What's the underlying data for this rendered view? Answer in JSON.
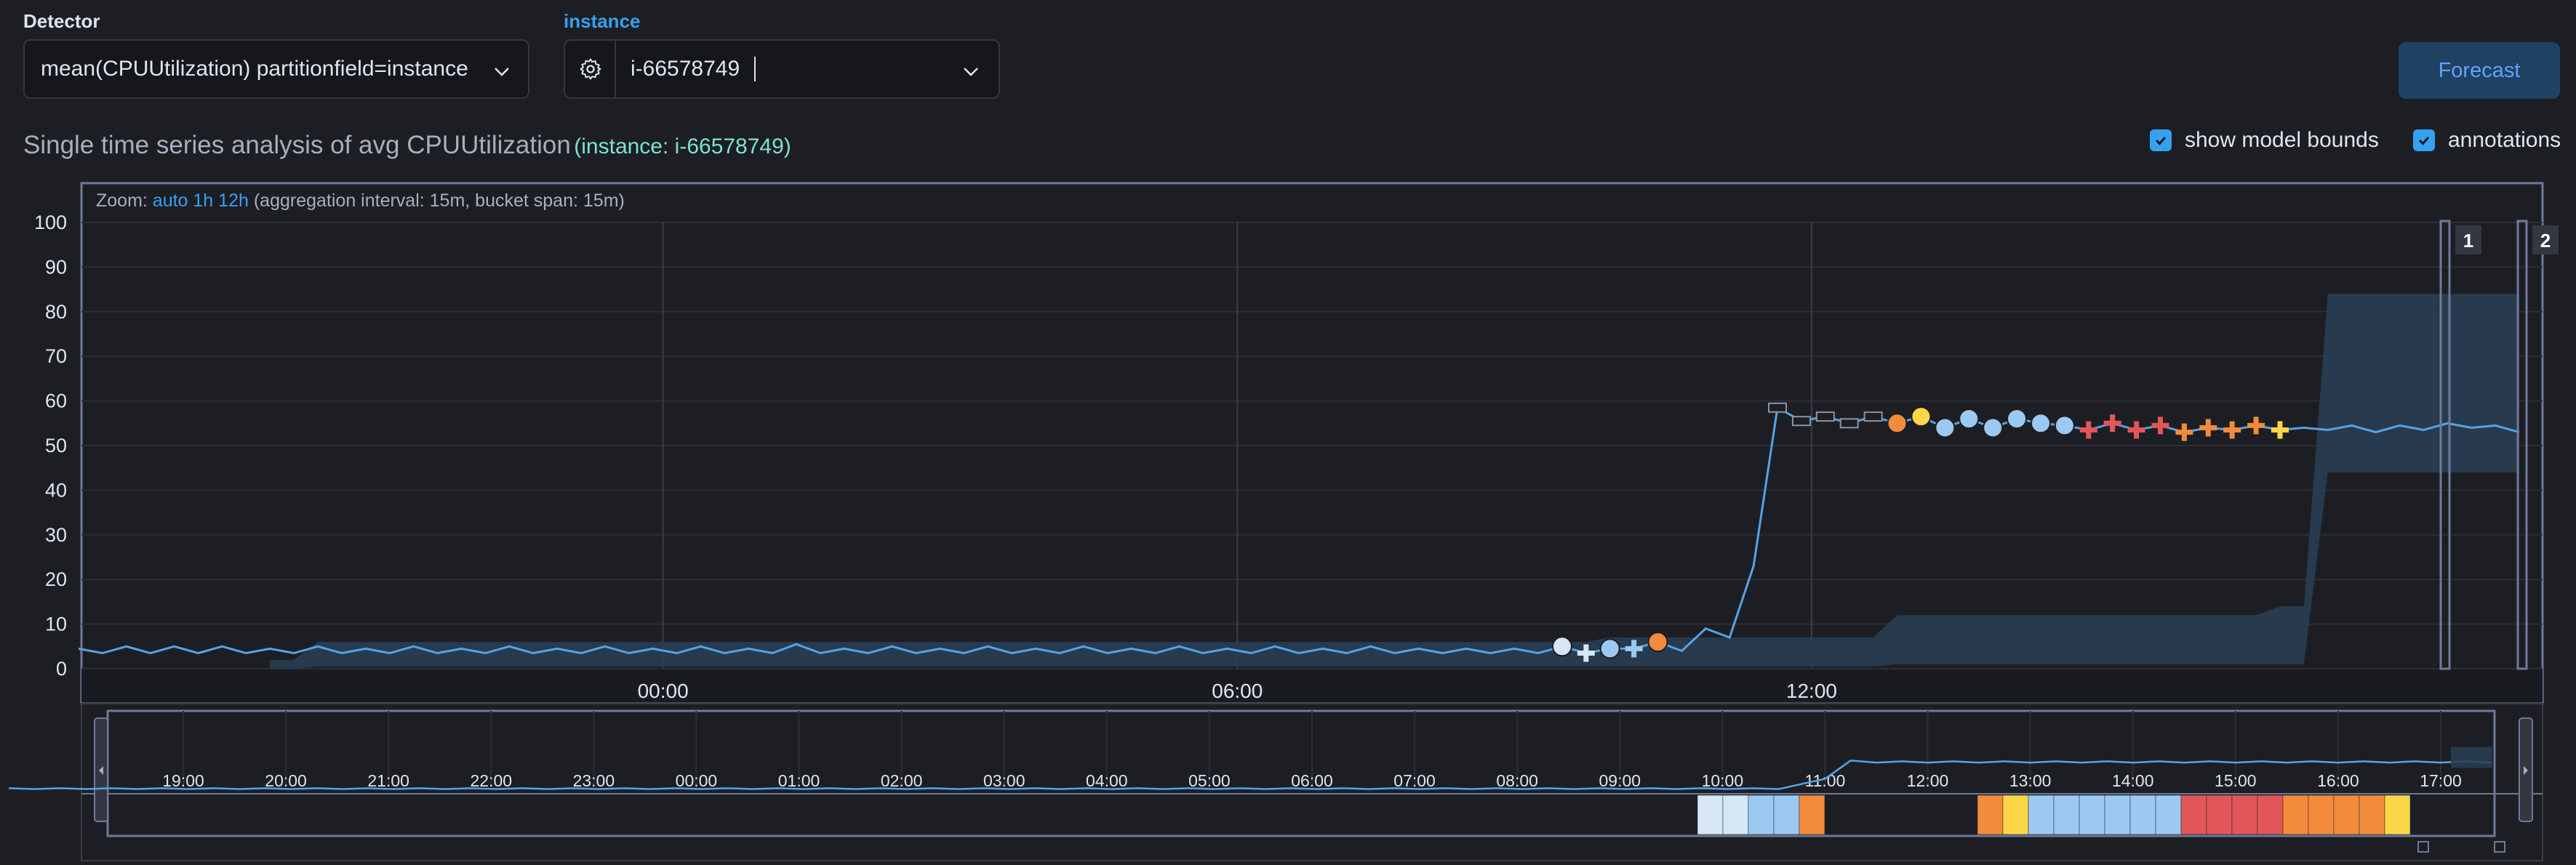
{
  "detector": {
    "label": "Detector",
    "value": "mean(CPUUtilization) partitionfield=instance"
  },
  "instance": {
    "label": "instance",
    "value": "i-66578749"
  },
  "forecast_button": "Forecast",
  "title": {
    "main": "Single time series analysis of avg CPUUtilization",
    "entity": "(instance: i-66578749)"
  },
  "toggles": {
    "model_bounds": {
      "label": "show model bounds",
      "checked": true
    },
    "annotations": {
      "label": "annotations",
      "checked": true
    }
  },
  "zoom": {
    "label": "Zoom:",
    "auto": "auto",
    "range": "1h",
    "range2": "12h",
    "interval": "(aggregation interval: 15m, bucket span: 15m)"
  },
  "annotation_labels": [
    "1",
    "2"
  ],
  "colors": {
    "line": "#54a3e6",
    "bounds": "#2a3f55",
    "critical": "#e15759",
    "major": "#f28b3b",
    "minor": "#fbd648",
    "warning": "#9bc9f2",
    "low": "#d6e6f5"
  },
  "chart_data": {
    "type": "line",
    "ylim": [
      0,
      100
    ],
    "y_ticks": [
      "0",
      "10",
      "20",
      "30",
      "40",
      "50",
      "60",
      "70",
      "80",
      "90",
      "100"
    ],
    "x_ticks": [
      "00:00",
      "06:00",
      "12:00"
    ],
    "series": [
      {
        "x_steps_from_start": "15m",
        "values": [
          4.5,
          3.5,
          5,
          3.5,
          5,
          3.5,
          5,
          3.5,
          4.5,
          3.5,
          5,
          3.5,
          4.5,
          3.5,
          5,
          3.5,
          4.5,
          3.5,
          5,
          3.5,
          4.5,
          3.5,
          5,
          3.5,
          4.5,
          3.5,
          5,
          3.5,
          4.5,
          3.5,
          5.5,
          3.5,
          4.5,
          3.5,
          5,
          3.5,
          4.5,
          3.5,
          5,
          3.5,
          4.5,
          3.5,
          5,
          3.5,
          4.5,
          3.5,
          5,
          3.5,
          4.5,
          3.5,
          5,
          3.5,
          4.5,
          3.5,
          5,
          3.5,
          4.5,
          3.5,
          4.5,
          3.5,
          4.5,
          3.5,
          5,
          3.5,
          4.5,
          4.5,
          6,
          4,
          9,
          7,
          23,
          58.5,
          55.5,
          56.5,
          55,
          56.5,
          55,
          56.5,
          54,
          56,
          54,
          56,
          55,
          54.5,
          53.5,
          55,
          53.5,
          54.5,
          53,
          54,
          53.5,
          54.5,
          53.5,
          54,
          53.5,
          54.5,
          53,
          54.5,
          53.5,
          55,
          54,
          54.5,
          53
        ]
      }
    ],
    "anomalies": [
      {
        "index": 62,
        "score": "low",
        "shape": "circle"
      },
      {
        "index": 63,
        "score": "low",
        "shape": "cross"
      },
      {
        "index": 64,
        "score": "warning",
        "shape": "circle"
      },
      {
        "index": 65,
        "score": "warning",
        "shape": "cross"
      },
      {
        "index": 66,
        "score": "major",
        "shape": "circle"
      },
      {
        "index": 76,
        "score": "major",
        "shape": "circle"
      },
      {
        "index": 77,
        "score": "minor",
        "shape": "circle"
      },
      {
        "index": 78,
        "score": "warning",
        "shape": "circle"
      },
      {
        "index": 79,
        "score": "warning",
        "shape": "circle"
      },
      {
        "index": 80,
        "score": "warning",
        "shape": "circle"
      },
      {
        "index": 81,
        "score": "warning",
        "shape": "circle"
      },
      {
        "index": 82,
        "score": "warning",
        "shape": "circle"
      },
      {
        "index": 83,
        "score": "warning",
        "shape": "circle"
      },
      {
        "index": 84,
        "score": "critical",
        "shape": "cross"
      },
      {
        "index": 85,
        "score": "critical",
        "shape": "cross"
      },
      {
        "index": 86,
        "score": "critical",
        "shape": "cross"
      },
      {
        "index": 87,
        "score": "critical",
        "shape": "cross"
      },
      {
        "index": 88,
        "score": "major",
        "shape": "cross"
      },
      {
        "index": 89,
        "score": "major",
        "shape": "cross"
      },
      {
        "index": 90,
        "score": "major",
        "shape": "cross"
      },
      {
        "index": 91,
        "score": "major",
        "shape": "cross"
      },
      {
        "index": 92,
        "score": "minor",
        "shape": "cross"
      }
    ],
    "context": {
      "x_ticks": [
        "19:00",
        "20:00",
        "21:00",
        "22:00",
        "23:00",
        "00:00",
        "01:00",
        "02:00",
        "03:00",
        "04:00",
        "05:00",
        "06:00",
        "07:00",
        "08:00",
        "09:00",
        "10:00",
        "11:00",
        "12:00",
        "13:00",
        "14:00",
        "15:00",
        "16:00",
        "17:00"
      ],
      "swimlane": [
        "low",
        "low",
        "warning",
        "warning",
        "major",
        "none",
        "none",
        "none",
        "none",
        "none",
        "none",
        "major",
        "minor",
        "warning",
        "warning",
        "warning",
        "warning",
        "warning",
        "warning",
        "critical",
        "critical",
        "critical",
        "critical",
        "major",
        "major",
        "major",
        "major",
        "minor"
      ]
    }
  }
}
